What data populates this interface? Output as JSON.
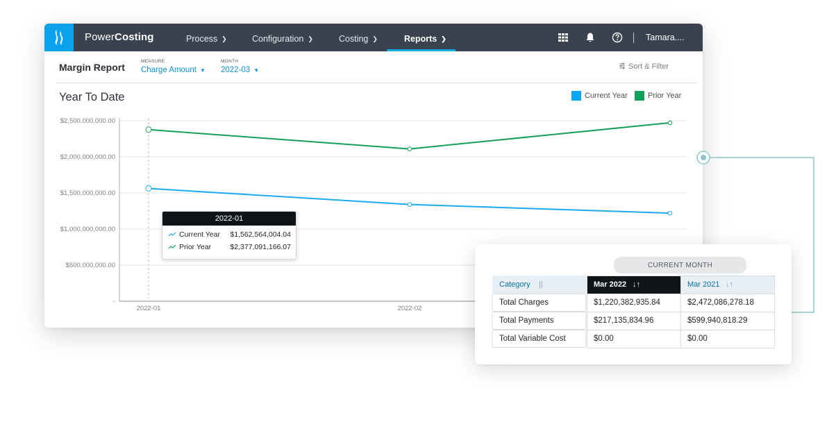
{
  "app": {
    "brand_part1": "Power",
    "brand_part2": "Costing",
    "nav": [
      {
        "label": "Process"
      },
      {
        "label": "Configuration"
      },
      {
        "label": "Costing"
      },
      {
        "label": "Reports"
      }
    ],
    "active_nav": "Reports",
    "user": "Tamara....",
    "icons": [
      "apps-grid-icon",
      "bell-icon",
      "help-circle-icon"
    ]
  },
  "report": {
    "title": "Margin Report",
    "measure": {
      "label": "MEASURE",
      "value": "Charge Amount"
    },
    "month": {
      "label": "MONTH",
      "value": "2022-03"
    },
    "sort_filter": "Sort & Filter"
  },
  "chart": {
    "title": "Year To Date",
    "tooltip": {
      "header": "2022-01",
      "rows": [
        {
          "name": "Current Year",
          "value": "$1,562,564,004.04"
        },
        {
          "name": "Prior Year",
          "value": "$2,377,091,166.07"
        }
      ]
    }
  },
  "chart_data": {
    "type": "line",
    "title": "Year To Date",
    "x": [
      "2022-01",
      "2022-02",
      "2022-03"
    ],
    "x_tick_labels": [
      "2022-01",
      "2022-02"
    ],
    "y_tick_labels": [
      "-",
      "$500,000,000.00",
      "$1,000,000,000.00",
      "$1,500,000,000.00",
      "$2,000,000,000.00",
      "$2,500,000,000.00"
    ],
    "y_ticks": [
      0,
      500000000,
      1000000000,
      1500000000,
      2000000000,
      2500000000
    ],
    "ylim": [
      0,
      2500000000
    ],
    "series": [
      {
        "name": "Current Year",
        "color": "#1aaaf0",
        "values": [
          1562564004.04,
          1340000000,
          1220382935.84
        ]
      },
      {
        "name": "Prior Year",
        "color": "#12a05a",
        "values": [
          2377091166.07,
          2110000000,
          2472086278.18
        ]
      }
    ],
    "legend": "top-right",
    "grid": true
  },
  "table": {
    "group_header": "CURRENT MONTH",
    "columns": [
      "Category",
      "Mar 2022",
      "Mar 2021"
    ],
    "rows": [
      [
        "Total Charges",
        "$1,220,382,935.84",
        "$2,472,086,278.18"
      ],
      [
        "Total Payments",
        "$217,135,834.96",
        "$599,940,818.29"
      ],
      [
        "Total Variable Cost",
        "$0.00",
        "$0.00"
      ]
    ]
  }
}
